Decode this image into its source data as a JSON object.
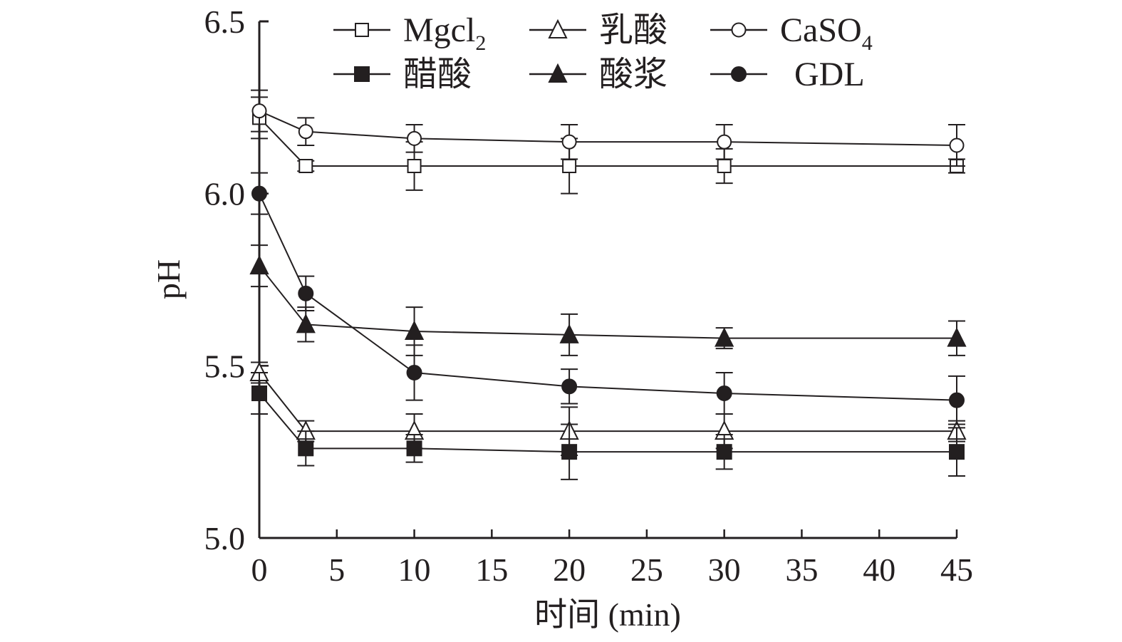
{
  "chart_data": {
    "type": "line",
    "title": "",
    "xlabel": "时间 (min)",
    "ylabel": "pH",
    "x": [
      0,
      3,
      10,
      20,
      30,
      45
    ],
    "xlim": [
      0,
      45
    ],
    "ylim": [
      5.0,
      6.5
    ],
    "xticks": [
      0,
      5,
      10,
      15,
      20,
      25,
      30,
      35,
      40,
      45
    ],
    "xtick_labels": [
      "0",
      "5",
      "10",
      "15",
      "20",
      "25",
      "30",
      "35",
      "40",
      "45"
    ],
    "yticks": [
      5.0,
      5.5,
      6.0,
      6.5
    ],
    "ytick_labels": [
      "5.0",
      "5.5",
      "6.0",
      "6.5"
    ],
    "grid": false,
    "legend_position": "top",
    "series": [
      {
        "name": "Mgcl2",
        "label_main": "Mgcl",
        "label_sub": "2",
        "marker": "square-open",
        "values": [
          6.22,
          6.08,
          6.08,
          6.08,
          6.08,
          6.08
        ],
        "errors": [
          0.06,
          0.015,
          0.07,
          0.08,
          0.05,
          0.02
        ]
      },
      {
        "name": "乳酸",
        "label_main": "乳酸",
        "label_sub": "",
        "marker": "triangle-open",
        "values": [
          5.48,
          5.31,
          5.31,
          5.31,
          5.31,
          5.31
        ],
        "errors": [
          0.03,
          0.03,
          0.05,
          0.07,
          0.05,
          0.03
        ]
      },
      {
        "name": "CaSO4",
        "label_main": "CaSO",
        "label_sub": "4",
        "marker": "circle-open",
        "values": [
          6.24,
          6.18,
          6.16,
          6.15,
          6.15,
          6.14
        ],
        "errors": [
          0.06,
          0.04,
          0.04,
          0.05,
          0.05,
          0.06
        ]
      },
      {
        "name": "醋酸",
        "label_main": "醋酸",
        "label_sub": "",
        "marker": "square-filled",
        "values": [
          5.42,
          5.26,
          5.26,
          5.25,
          5.25,
          5.25
        ],
        "errors": [
          0.06,
          0.05,
          0.04,
          0.08,
          0.05,
          0.07
        ]
      },
      {
        "name": "酸浆",
        "label_main": "酸浆",
        "label_sub": "",
        "marker": "triangle-filled",
        "values": [
          5.79,
          5.62,
          5.6,
          5.59,
          5.58,
          5.58
        ],
        "errors": [
          0.06,
          0.05,
          0.07,
          0.06,
          0.03,
          0.05
        ]
      },
      {
        "name": "GDL",
        "label_main": "GDL",
        "label_sub": "",
        "marker": "circle-filled",
        "values": [
          6.0,
          5.71,
          5.48,
          5.44,
          5.42,
          5.4
        ],
        "errors": [
          0.06,
          0.05,
          0.08,
          0.05,
          0.06,
          0.07
        ]
      }
    ]
  },
  "colors": {
    "ink": "#231f20",
    "background": "#ffffff"
  }
}
